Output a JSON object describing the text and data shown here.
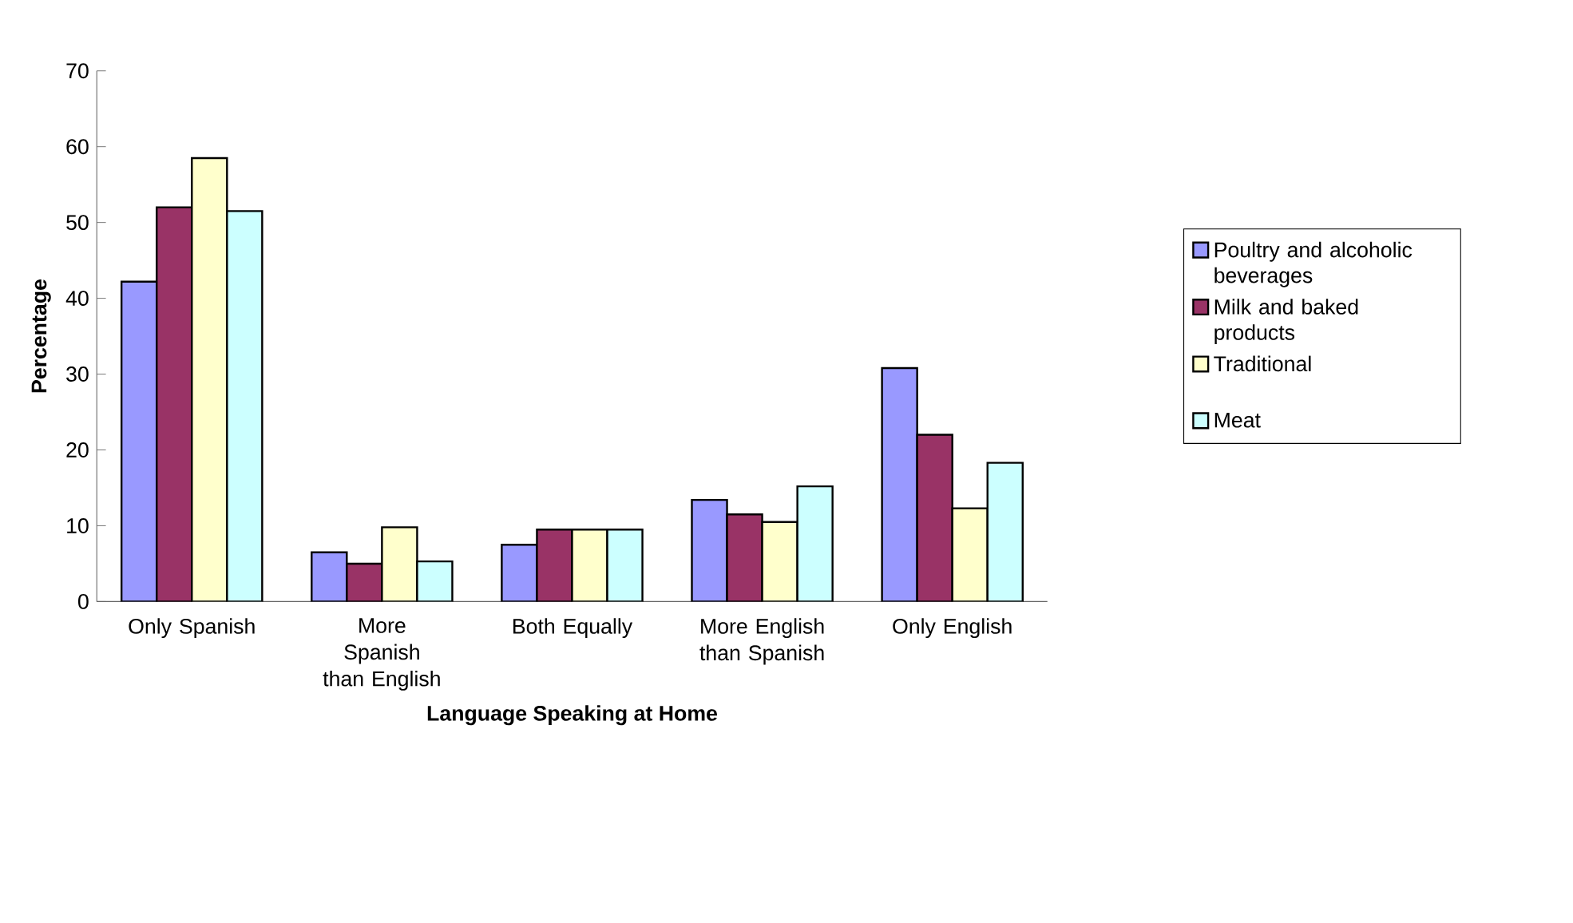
{
  "chart_data": {
    "type": "bar",
    "xlabel": "Language Speaking at Home",
    "ylabel": "Percentage",
    "categories": [
      "Only Spanish",
      "More Spanish than English",
      "Both Equally",
      "More English than Spanish",
      "Only English"
    ],
    "series": [
      {
        "name": "Poultry and alcoholic beverages",
        "color": "#9999ff",
        "values": [
          42.2,
          6.5,
          7.5,
          13.4,
          30.8
        ]
      },
      {
        "name": "Milk and baked products",
        "color": "#993366",
        "values": [
          52,
          5,
          9.5,
          11.5,
          22
        ]
      },
      {
        "name": "Traditional",
        "color": "#ffffcc",
        "values": [
          58.5,
          9.8,
          9.5,
          10.5,
          12.3
        ]
      },
      {
        "name": "Meat",
        "color": "#ccffff",
        "values": [
          51.5,
          5.3,
          9.5,
          15.2,
          18.3
        ]
      }
    ],
    "ylim": [
      0,
      70
    ],
    "yticks": [
      0,
      10,
      20,
      30,
      40,
      50,
      60,
      70
    ],
    "legend": "right"
  }
}
